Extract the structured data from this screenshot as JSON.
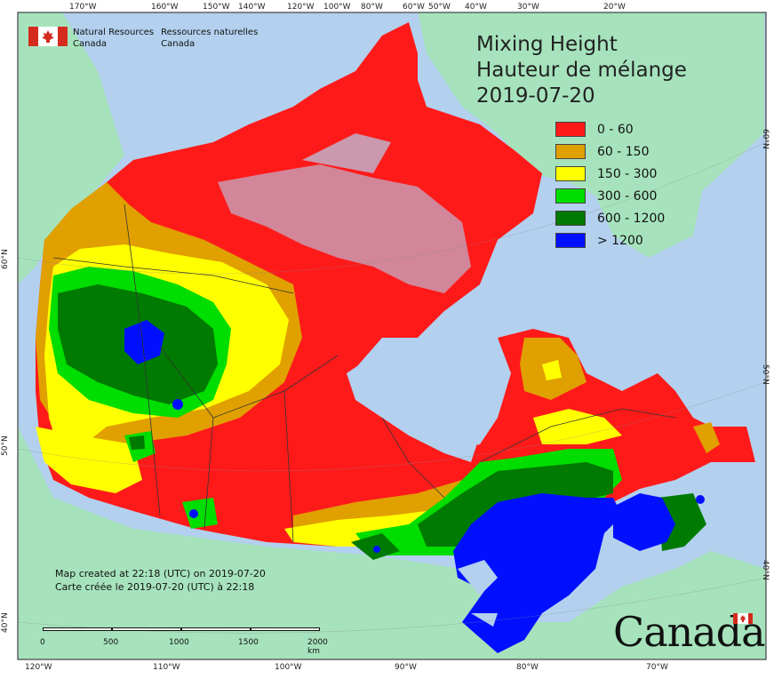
{
  "title": {
    "line1": "Mixing Height",
    "line2": "Hauteur de mélange",
    "date": "2019-07-20"
  },
  "legend": [
    {
      "label": "0 - 60",
      "color": "#ff1a1a"
    },
    {
      "label": "60 - 150",
      "color": "#e0a000"
    },
    {
      "label": "150 - 300",
      "color": "#ffff00"
    },
    {
      "label": "300 - 600",
      "color": "#00dd00"
    },
    {
      "label": "600 - 1200",
      "color": "#007a00"
    },
    {
      "label": "> 1200",
      "color": "#0010ff"
    }
  ],
  "agency": {
    "en_line1": "Natural Resources",
    "en_line2": "Canada",
    "fr_line1": "Ressources naturelles",
    "fr_line2": "Canada"
  },
  "credit": {
    "en": "Map created at 22:18 (UTC) on 2019-07-20",
    "fr": "Carte créée le 2019-07-20 (UTC) à 22:18"
  },
  "scale_labels": [
    "0",
    "500",
    "1000",
    "1500",
    "2000  km"
  ],
  "wordmark": "Canada",
  "ticks": {
    "top": [
      "170°W",
      "160°W",
      "150°W",
      "140°W",
      "120°W",
      "100°W",
      "80°W",
      "60°W",
      "50°W",
      "40°W",
      "30°W",
      "20°W"
    ],
    "bottom": [
      "120°W",
      "110°W",
      "100°W",
      "90°W",
      "80°W",
      "70°W"
    ],
    "left": [
      "60°N",
      "50°N",
      "40°N"
    ],
    "right": [
      "60°N",
      "50°N",
      "40°N"
    ]
  },
  "colors": {
    "ocean": "#b3d0ee",
    "land_other": "#a6e3bc",
    "border": "#333333"
  }
}
